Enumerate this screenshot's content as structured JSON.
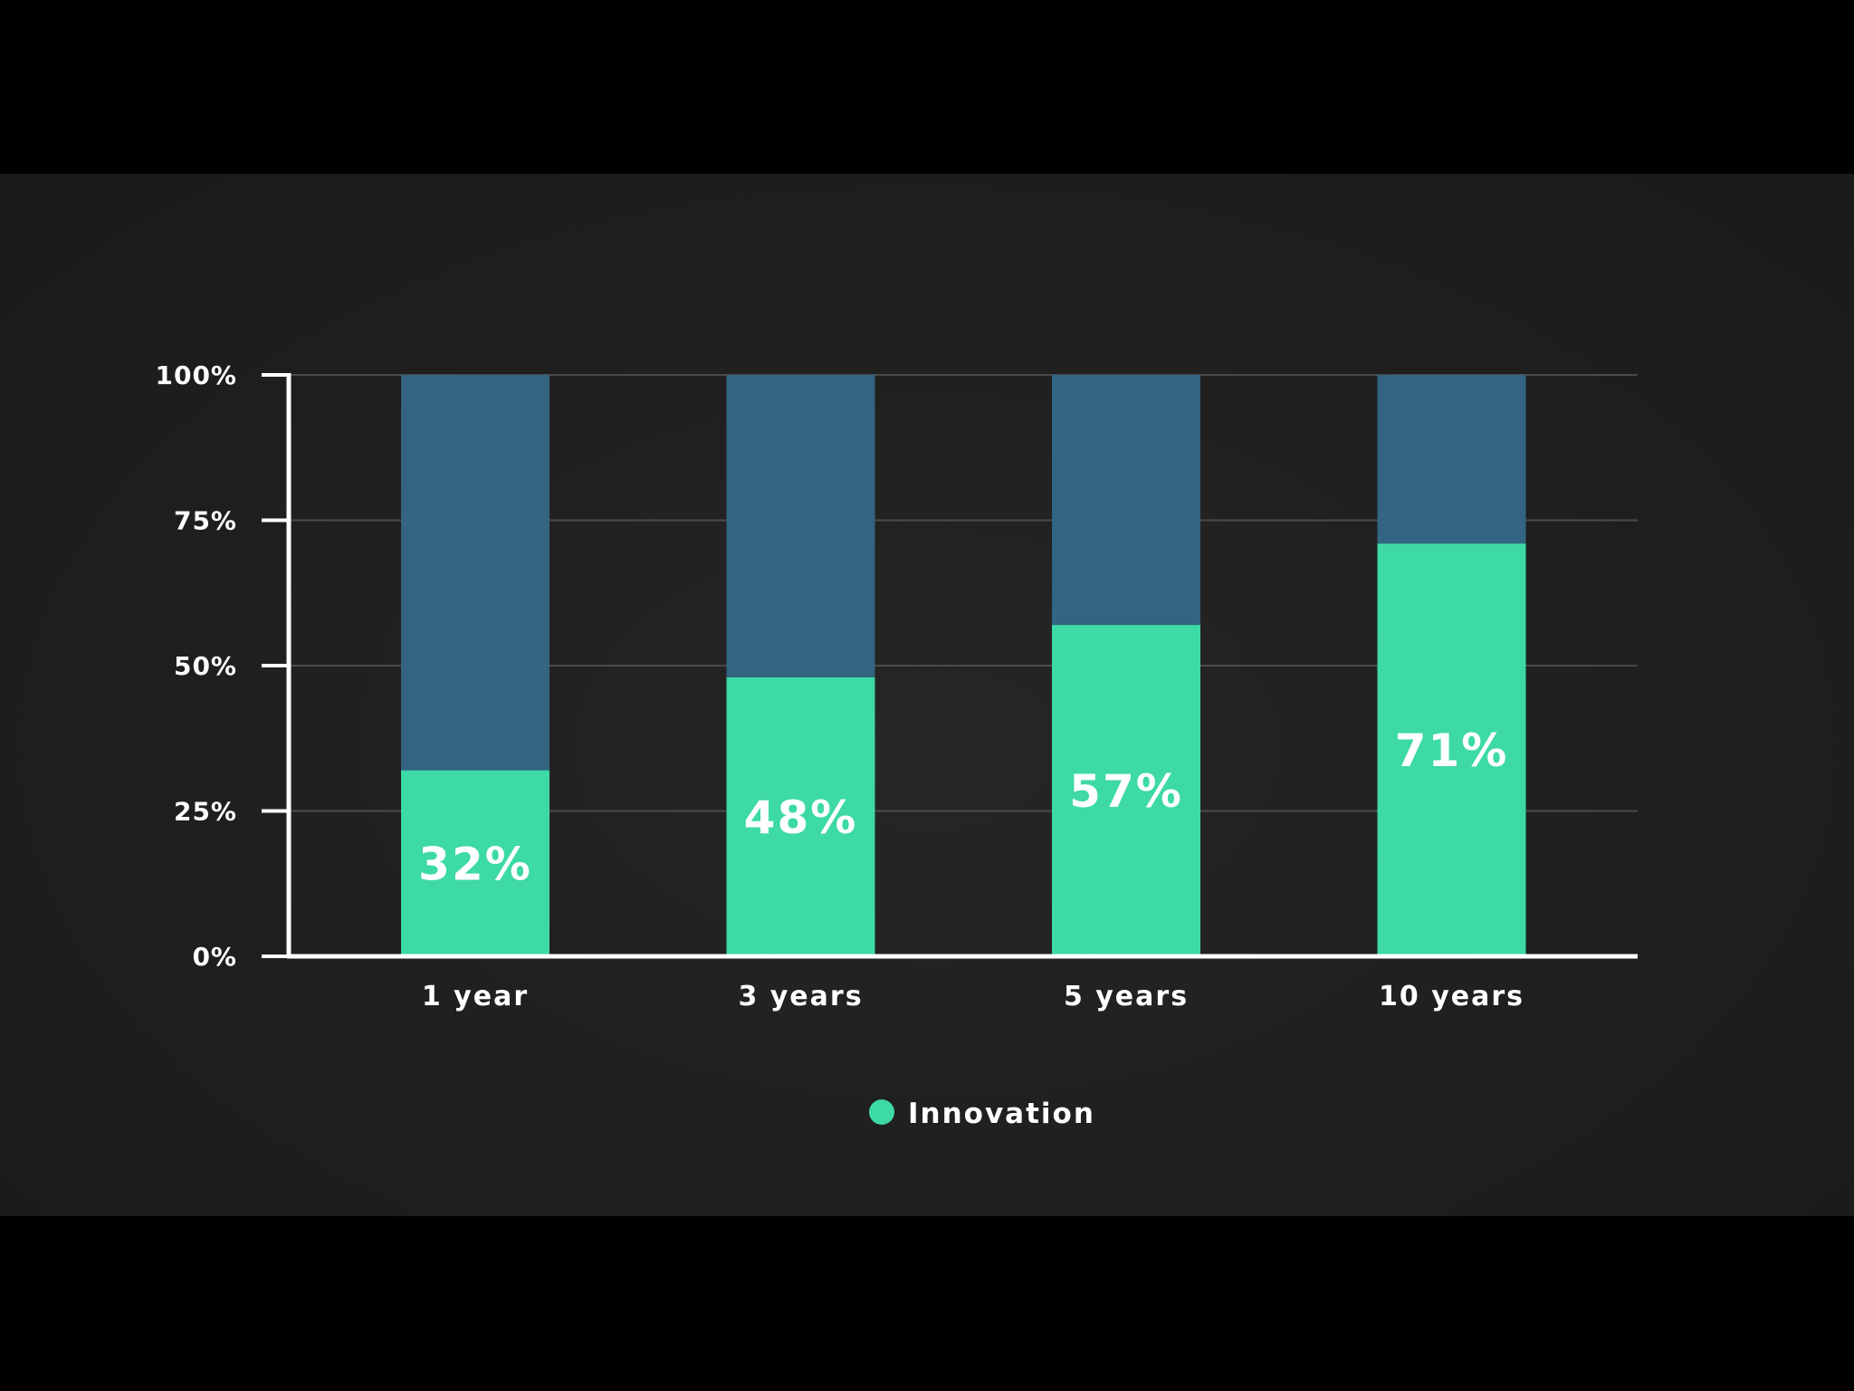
{
  "chart_data": {
    "type": "bar",
    "stacked": true,
    "percent_stacked": true,
    "categories": [
      "1 year",
      "3 years",
      "5 years",
      "10 years"
    ],
    "series": [
      {
        "name": "Innovation",
        "values": [
          32,
          48,
          57,
          71
        ],
        "color": "#3dd9a6"
      },
      {
        "values": [
          68,
          52,
          43,
          29
        ],
        "color": "#336482"
      }
    ],
    "data_labels": [
      "32%",
      "48%",
      "57%",
      "71%"
    ],
    "ylim": [
      0,
      100
    ],
    "yticks": [
      0,
      25,
      50,
      75,
      100
    ],
    "ytick_labels": [
      "0%",
      "25%",
      "50%",
      "75%",
      "100%"
    ],
    "grid": true,
    "legend": "bottom-center",
    "xlabel": "",
    "ylabel": "",
    "title": ""
  },
  "colors": {
    "background": "#1f1f1f",
    "letterbox": "#000000",
    "axis": "#ffffff",
    "grid": "#4a4a4a",
    "innovation": "#3dd9a6",
    "remainder": "#336482"
  }
}
